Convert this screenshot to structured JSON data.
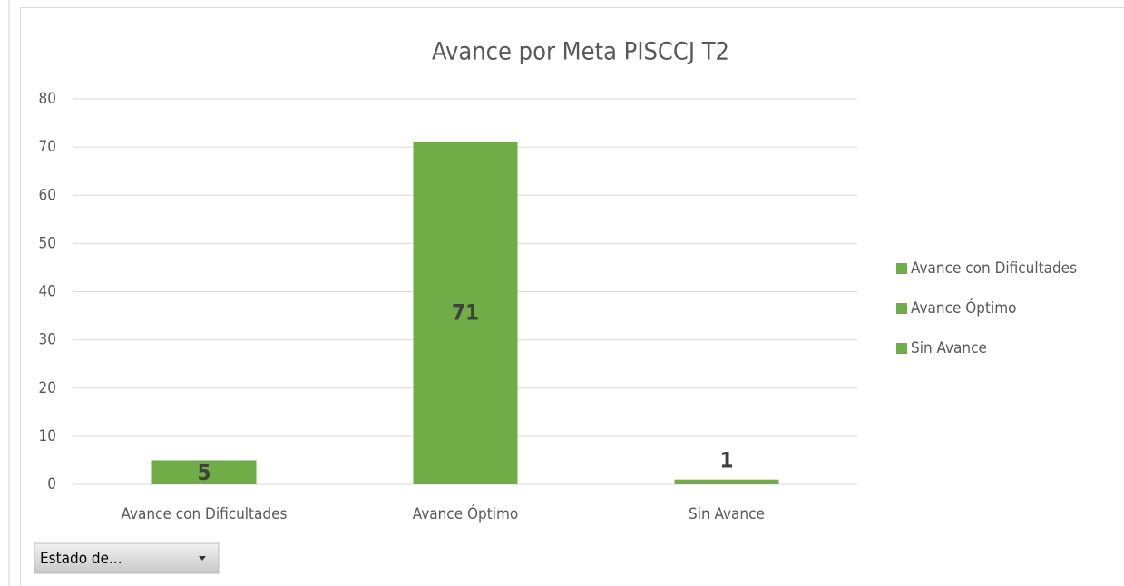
{
  "chart_data": {
    "type": "bar",
    "title": "Avance por Meta PISCCJ T2",
    "categories": [
      "Avance con Dificultades",
      "Avance Óptimo",
      "Sin Avance"
    ],
    "values": [
      5,
      71,
      1
    ],
    "color": "#70ad47",
    "ylim": [
      0,
      80
    ],
    "yticks": [
      0,
      10,
      20,
      30,
      40,
      50,
      60,
      70,
      80
    ],
    "grid": true,
    "legend": "right"
  },
  "field_button": "Estado de..."
}
